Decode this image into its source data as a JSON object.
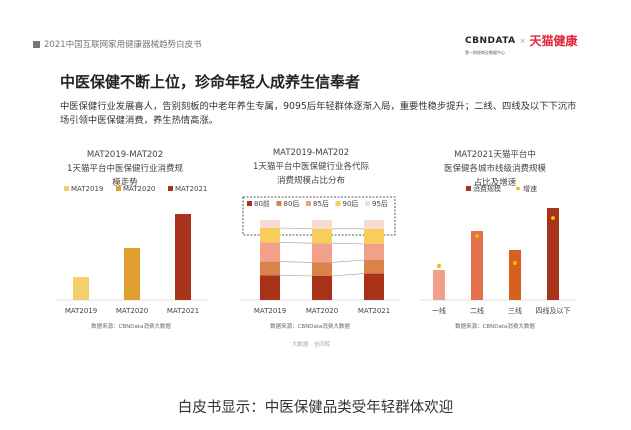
{
  "header": {
    "doc_title": "2021中国互联网家用健康器械趋势白皮书",
    "logo_cbn": "CBNDATA",
    "logo_cbn_sub": "第一财经商业数据中心",
    "logo_x": "×",
    "logo_tmall": "天猫健康"
  },
  "slide": {
    "title": "中医保健不断上位，珍命年轻人成养生信奉者",
    "description": "中医保健行业发展喜人，告别刻板的中老年养生专属，9095后年轻群体逐渐入局，重要性稳步提升；二线、四线及以下下沉市场引领中医保健消费，养生热情高涨。",
    "watermark": "大数据 · 全同辉"
  },
  "caption": "白皮书显示：中医保健品类受年轻群体欢迎",
  "chart_data": [
    {
      "type": "bar",
      "title": "MAT2019-MAT2021天猫平台中医保健行业消费规模走势",
      "categories": [
        "MAT2019",
        "MAT2020",
        "MAT2021"
      ],
      "values": [
        23,
        52,
        86
      ],
      "legend": [
        "MAT2019",
        "MAT2020",
        "MAT2021"
      ],
      "legend_position": "top",
      "colors": [
        "#f5cf6a",
        "#e0a030",
        "#a8321a"
      ],
      "source": "数据来源：CBNData消费大数据",
      "grid": false
    },
    {
      "type": "bar",
      "stacked": true,
      "title": "MAT2019-MAT2021天猫平台中医保健行业各代际消费规模占比分布",
      "categories": [
        "MAT2019",
        "MAT2020",
        "MAT2021"
      ],
      "series": [
        {
          "name": "80前",
          "values": [
            31,
            30,
            33
          ],
          "color": "#a8321a"
        },
        {
          "name": "80后",
          "values": [
            17,
            17,
            17
          ],
          "color": "#d9824a"
        },
        {
          "name": "85后",
          "values": [
            24,
            24,
            20
          ],
          "color": "#f2a08a"
        },
        {
          "name": "90后",
          "values": [
            18,
            18,
            19
          ],
          "color": "#f7cd5c"
        },
        {
          "name": "95后",
          "values": [
            10,
            11,
            11
          ],
          "color": "#f8dcd2"
        }
      ],
      "legend_position": "top",
      "ylim": [
        0,
        100
      ],
      "source": "数据来源：CBNData消费大数据",
      "grid": false
    },
    {
      "type": "bar",
      "title": "MAT2021天猫平台中医保健各城市线级消费规模占比及增速",
      "categories": [
        "一线",
        "二线",
        "三线",
        "四线及以下"
      ],
      "series": [
        {
          "name": "消费规模",
          "values": [
            30,
            69,
            50,
            92
          ],
          "colors": [
            "#f0a08a",
            "#e4714a",
            "#d8601e",
            "#a8321a"
          ]
        },
        {
          "name": "增速",
          "values": [
            34,
            64,
            37,
            82
          ],
          "color": "#f5b800",
          "mark": "dot"
        }
      ],
      "legend_position": "top",
      "source": "数据来源：CBNData消费大数据",
      "grid": false
    }
  ]
}
